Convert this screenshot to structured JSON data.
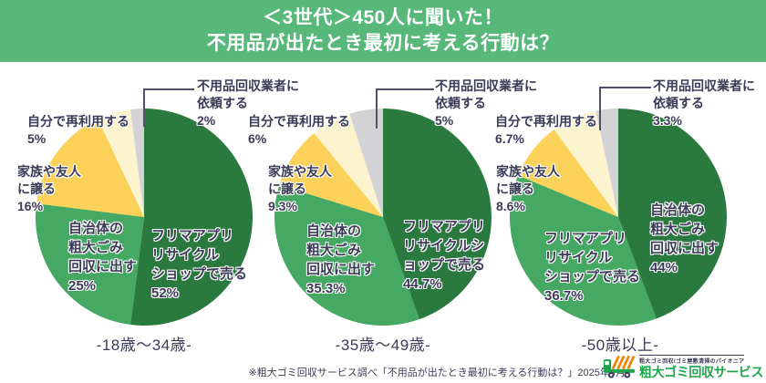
{
  "header": {
    "title_line1": "＜3世代＞450人に聞いた！",
    "title_line2": "不用品が出たとき最初に考える行動は？"
  },
  "colors": {
    "header_bg": "#57b87a",
    "dark_green": "#2a7a40",
    "mid_green": "#45a963",
    "yellow": "#fbd159",
    "cream": "#fcf3cf",
    "gray": "#d3d3d5",
    "text_navy": "#3b3b58",
    "leader_line": "#50506e",
    "logo_green": "#1ea44b",
    "logo_orange": "#f08300"
  },
  "chart_data": [
    {
      "type": "pie",
      "age_group": "-18歳〜34歳-",
      "categories": [
        "フリマアプリリサイクルショップで売る",
        "自治体の粗大ごみ回収に出す",
        "家族や友人に譲る",
        "自分で再利用する",
        "不用品回収業者に依頼する"
      ],
      "values": [
        52,
        25,
        16,
        5,
        2
      ],
      "unit": "%",
      "slice_colors": [
        "dark_green",
        "mid_green",
        "yellow",
        "cream",
        "gray"
      ],
      "start_angle": "12-oclock-clockwise",
      "labels": {
        "flea": "フリマアプリ\nリサイクル\nショップで売る\n52%",
        "municipal": "自治体の\n粗大ごみ\n回収に出す\n25%",
        "family": "家族や友人\nに譲る\n16%",
        "reuse": "自分で再利用する\n5%",
        "collector": "不用品回収業者に\n依頼する\n2%"
      }
    },
    {
      "type": "pie",
      "age_group": "-35歳〜49歳-",
      "categories": [
        "フリマアプリリサイクルショップで売る",
        "自治体の粗大ごみ回収に出す",
        "家族や友人に譲る",
        "自分で再利用する",
        "不用品回収業者に依頼する"
      ],
      "values": [
        44.7,
        35.3,
        9.3,
        6,
        5
      ],
      "unit": "%",
      "slice_colors": [
        "dark_green",
        "mid_green",
        "yellow",
        "cream",
        "gray"
      ],
      "start_angle": "12-oclock-clockwise",
      "labels": {
        "flea": "フリマアプリ\nリサイクルシ\nョップで売る\n44.7%",
        "municipal": "自治体の\n粗大ごみ\n回収に出す\n35.3%",
        "family": "家族や友人\nに譲る\n9.3%",
        "reuse": "自分で再利用する\n6%",
        "collector": "不用品回収業者に\n依頼する\n5%"
      }
    },
    {
      "type": "pie",
      "age_group": "-50歳以上-",
      "categories": [
        "自治体の粗大ごみ回収に出す",
        "フリマアプリリサイクルショップで売る",
        "家族や友人に譲る",
        "自分で再利用する",
        "不用品回収業者に依頼する"
      ],
      "values": [
        44,
        36.7,
        8.6,
        6.7,
        3.3
      ],
      "unit": "%",
      "slice_colors": [
        "dark_green",
        "mid_green",
        "yellow",
        "cream",
        "gray"
      ],
      "start_angle": "12-oclock-clockwise",
      "labels": {
        "municipal": "自治体の\n粗大ごみ\n回収に出す\n44%",
        "flea": "フリマアプリ\nリサイクル\nショップで売る\n36.7%",
        "family": "家族や友人\nに譲る\n8.6%",
        "reuse": "自分で再利用する\n6.7%",
        "collector": "不用品回収業者に\n依頼する\n3.3%"
      }
    }
  ],
  "footer": {
    "note": "※粗大ゴミ回収サービス調べ「不用品が出たとき最初に考える行動は？」2025年9月",
    "logo": {
      "tagline": "粗大ゴミ回収/ゴミ屋敷清掃のパイオニア",
      "name": "粗大ゴミ回収サービス"
    }
  }
}
